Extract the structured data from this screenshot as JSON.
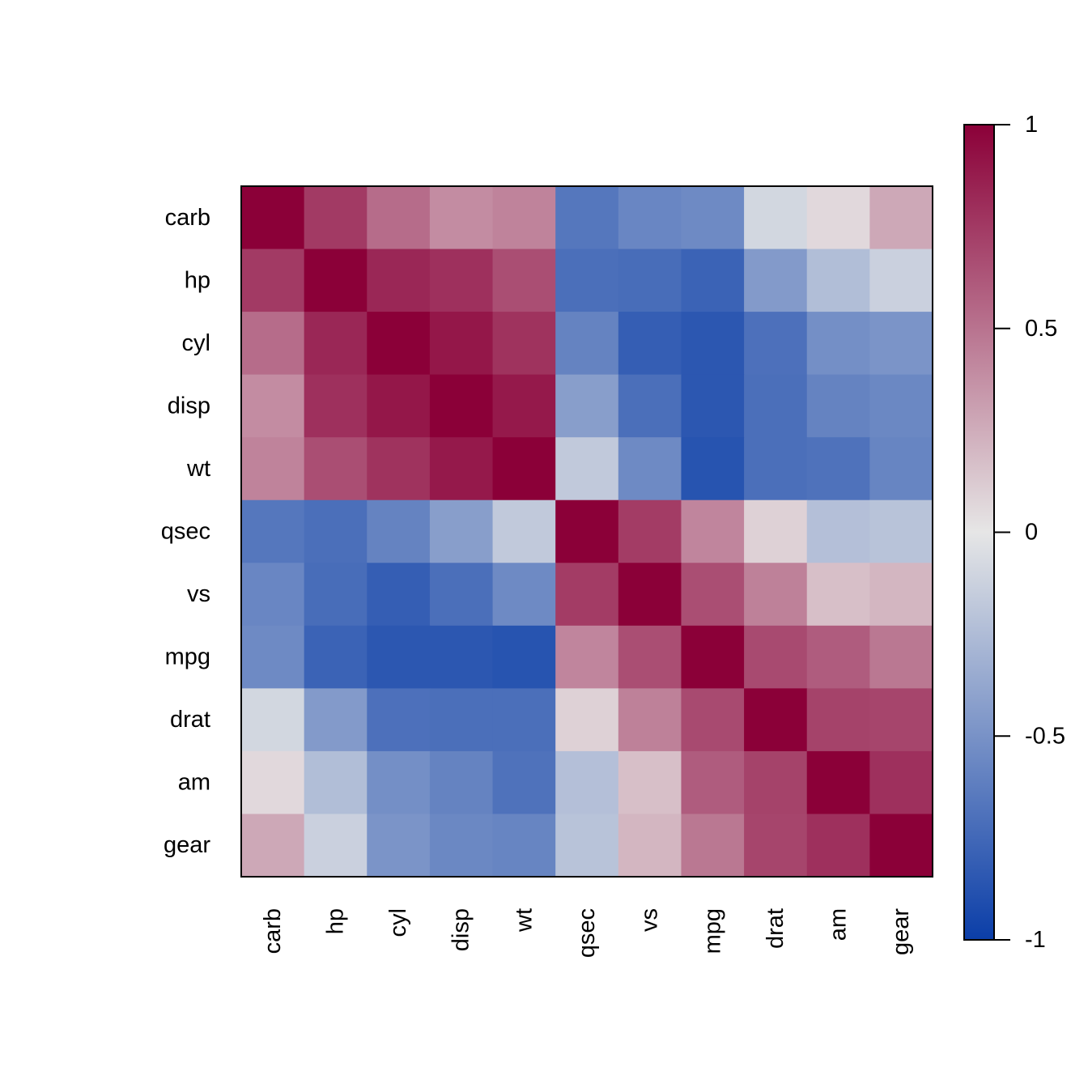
{
  "chart_data": {
    "type": "heatmap",
    "title": "",
    "xlabel": "",
    "ylabel": "",
    "rows": [
      "carb",
      "hp",
      "cyl",
      "disp",
      "wt",
      "qsec",
      "vs",
      "mpg",
      "drat",
      "am",
      "gear"
    ],
    "columns": [
      "carb",
      "hp",
      "cyl",
      "disp",
      "wt",
      "qsec",
      "vs",
      "mpg",
      "drat",
      "am",
      "gear"
    ],
    "values": [
      [
        1.0,
        0.75,
        0.53,
        0.39,
        0.43,
        -0.66,
        -0.57,
        -0.55,
        -0.09,
        0.06,
        0.27
      ],
      [
        0.75,
        1.0,
        0.83,
        0.79,
        0.66,
        -0.71,
        -0.72,
        -0.78,
        -0.45,
        -0.24,
        -0.13
      ],
      [
        0.53,
        0.83,
        1.0,
        0.9,
        0.78,
        -0.59,
        -0.81,
        -0.85,
        -0.7,
        -0.52,
        -0.49
      ],
      [
        0.39,
        0.79,
        0.9,
        1.0,
        0.89,
        -0.43,
        -0.71,
        -0.85,
        -0.71,
        -0.59,
        -0.56
      ],
      [
        0.43,
        0.66,
        0.78,
        0.89,
        1.0,
        -0.17,
        -0.55,
        -0.87,
        -0.71,
        -0.69,
        -0.58
      ],
      [
        -0.66,
        -0.71,
        -0.59,
        -0.43,
        -0.17,
        1.0,
        0.74,
        0.42,
        0.09,
        -0.23,
        -0.21
      ],
      [
        -0.57,
        -0.72,
        -0.81,
        -0.71,
        -0.55,
        0.74,
        1.0,
        0.66,
        0.44,
        0.17,
        0.21
      ],
      [
        -0.55,
        -0.78,
        -0.85,
        -0.85,
        -0.87,
        0.42,
        0.66,
        1.0,
        0.68,
        0.6,
        0.48
      ],
      [
        -0.09,
        -0.45,
        -0.7,
        -0.71,
        -0.71,
        0.09,
        0.44,
        0.68,
        1.0,
        0.71,
        0.7
      ],
      [
        0.06,
        -0.24,
        -0.52,
        -0.59,
        -0.69,
        -0.23,
        0.17,
        0.6,
        0.71,
        1.0,
        0.79
      ],
      [
        0.27,
        -0.13,
        -0.49,
        -0.56,
        -0.58,
        -0.21,
        0.21,
        0.48,
        0.7,
        0.79,
        1.0
      ]
    ],
    "value_range": [
      -1,
      1
    ],
    "colorbar": {
      "ticks": [
        1,
        0.5,
        0,
        -0.5,
        -1
      ],
      "tick_labels": [
        "1",
        "0.5",
        "0",
        "-0.5",
        "-1"
      ],
      "colors": {
        "low": "#0b3ea8",
        "mid": "#e6e6e6",
        "high": "#8b0038"
      }
    },
    "grid": false,
    "legend_position": "right",
    "x_tick_rotation": "vertical"
  }
}
